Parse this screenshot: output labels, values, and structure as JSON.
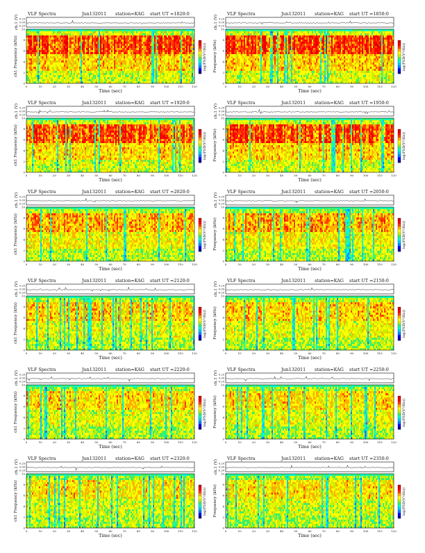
{
  "page": {
    "background": "#ffffff"
  },
  "colors": {
    "colorbar": [
      "#08088c",
      "#0000ff",
      "#0080ff",
      "#00c8ff",
      "#00ffd0",
      "#3cf06a",
      "#c8f000",
      "#ffff00",
      "#ffb000",
      "#ff4000",
      "#ff0000",
      "#e00000"
    ],
    "trace": "#222222"
  },
  "common": {
    "ch_label": "ch.1 (V)",
    "ylabel": "ch1\nFrequency (kHz)",
    "ylabel_right": "Frequency (kHz)",
    "xlabel": "Time (sec)",
    "cbar_label": "log(PSD(V²/Hz))",
    "v_ticks": [
      "0.20",
      "0.00",
      "-0.20"
    ],
    "f_ticks": [
      "0",
      "2",
      "4",
      "6",
      "8",
      "10"
    ],
    "t_ticks_left": [
      "0",
      "10",
      "20",
      "30",
      "40",
      "50",
      "60",
      "70",
      "80",
      "90",
      "100",
      "110",
      "120"
    ],
    "t_ticks_right": [
      "0",
      "10",
      "20",
      "30",
      "40",
      "50",
      "60",
      "70",
      "80",
      "90",
      "100",
      "110",
      "120"
    ]
  },
  "chart_data": [
    {
      "type": "heatmap",
      "title": "VLF Spectra",
      "date": "Jun132011",
      "station": "station=KAG",
      "start": "start UT =1820:0",
      "xlim": [
        0,
        120
      ],
      "ylim": [
        0,
        10
      ],
      "signal": [
        0.9,
        0.3
      ],
      "intensity": 0.9
    },
    {
      "type": "heatmap",
      "title": "VLF Spectra",
      "date": "Jun132011",
      "station": "station=KAG",
      "start": "start UT =1850:0",
      "xlim": [
        0,
        120
      ],
      "ylim": [
        0,
        10
      ],
      "signal": [
        0.9,
        0.3
      ],
      "intensity": 0.9
    },
    {
      "type": "heatmap",
      "title": "VLF Spectra",
      "date": "Jun132011",
      "station": "station=KAG",
      "start": "start UT =1920:0",
      "xlim": [
        0,
        120
      ],
      "ylim": [
        0,
        10
      ],
      "signal": [
        0.8,
        0.3
      ],
      "intensity": 0.85
    },
    {
      "type": "heatmap",
      "title": "VLF Spectra",
      "date": "Jun132011",
      "station": "station=KAG",
      "start": "start UT =1950:0",
      "xlim": [
        0,
        120
      ],
      "ylim": [
        0,
        10
      ],
      "signal": [
        0.8,
        0.3
      ],
      "intensity": 0.85
    },
    {
      "type": "heatmap",
      "title": "VLF Spectra",
      "date": "Jun132011",
      "station": "station=KAG",
      "start": "start UT =2020:0",
      "xlim": [
        0,
        120
      ],
      "ylim": [
        0,
        10
      ],
      "signal": [
        0.3,
        0.15
      ],
      "intensity": 0.6
    },
    {
      "type": "heatmap",
      "title": "VLF Spectra",
      "date": "Jun132011",
      "station": "station=KAG",
      "start": "start UT =2050:0",
      "xlim": [
        0,
        120
      ],
      "ylim": [
        0,
        10
      ],
      "signal": [
        0.3,
        0.15
      ],
      "intensity": 0.6
    },
    {
      "type": "heatmap",
      "title": "VLF Spectra",
      "date": "Jun132011",
      "station": "station=KAG",
      "start": "start UT =2120:0",
      "xlim": [
        0,
        120
      ],
      "ylim": [
        0,
        10
      ],
      "signal": [
        0.6,
        0.2
      ],
      "intensity": 0.5
    },
    {
      "type": "heatmap",
      "title": "VLF Spectra",
      "date": "Jun132011",
      "station": "station=KAG",
      "start": "start UT =2150:0",
      "xlim": [
        0,
        120
      ],
      "ylim": [
        0,
        10
      ],
      "signal": [
        0.6,
        0.2
      ],
      "intensity": 0.5
    },
    {
      "type": "heatmap",
      "title": "VLF Spectra",
      "date": "Jun132011",
      "station": "station=KAG",
      "start": "start UT =2220:0",
      "xlim": [
        0,
        120
      ],
      "ylim": [
        0,
        10
      ],
      "signal": [
        0.2,
        0.1
      ],
      "intensity": 0.45
    },
    {
      "type": "heatmap",
      "title": "VLF Spectra",
      "date": "Jun132011",
      "station": "station=KAG",
      "start": "start UT =2250:0",
      "xlim": [
        0,
        120
      ],
      "ylim": [
        0,
        10
      ],
      "signal": [
        0.2,
        0.1
      ],
      "intensity": 0.45
    },
    {
      "type": "heatmap",
      "title": "VLF Spectra",
      "date": "Jun132011",
      "station": "station=KAG",
      "start": "start UT =2320:0",
      "xlim": [
        0,
        120
      ],
      "ylim": [
        0,
        10
      ],
      "signal": [
        0.2,
        0.1
      ],
      "intensity": 0.4
    },
    {
      "type": "heatmap",
      "title": "VLF Spectra",
      "date": "Jun132011",
      "station": "station=KAG",
      "start": "start UT =2350:0",
      "xlim": [
        0,
        120
      ],
      "ylim": [
        0,
        10
      ],
      "signal": [
        0.2,
        0.1
      ],
      "intensity": 0.4
    }
  ]
}
